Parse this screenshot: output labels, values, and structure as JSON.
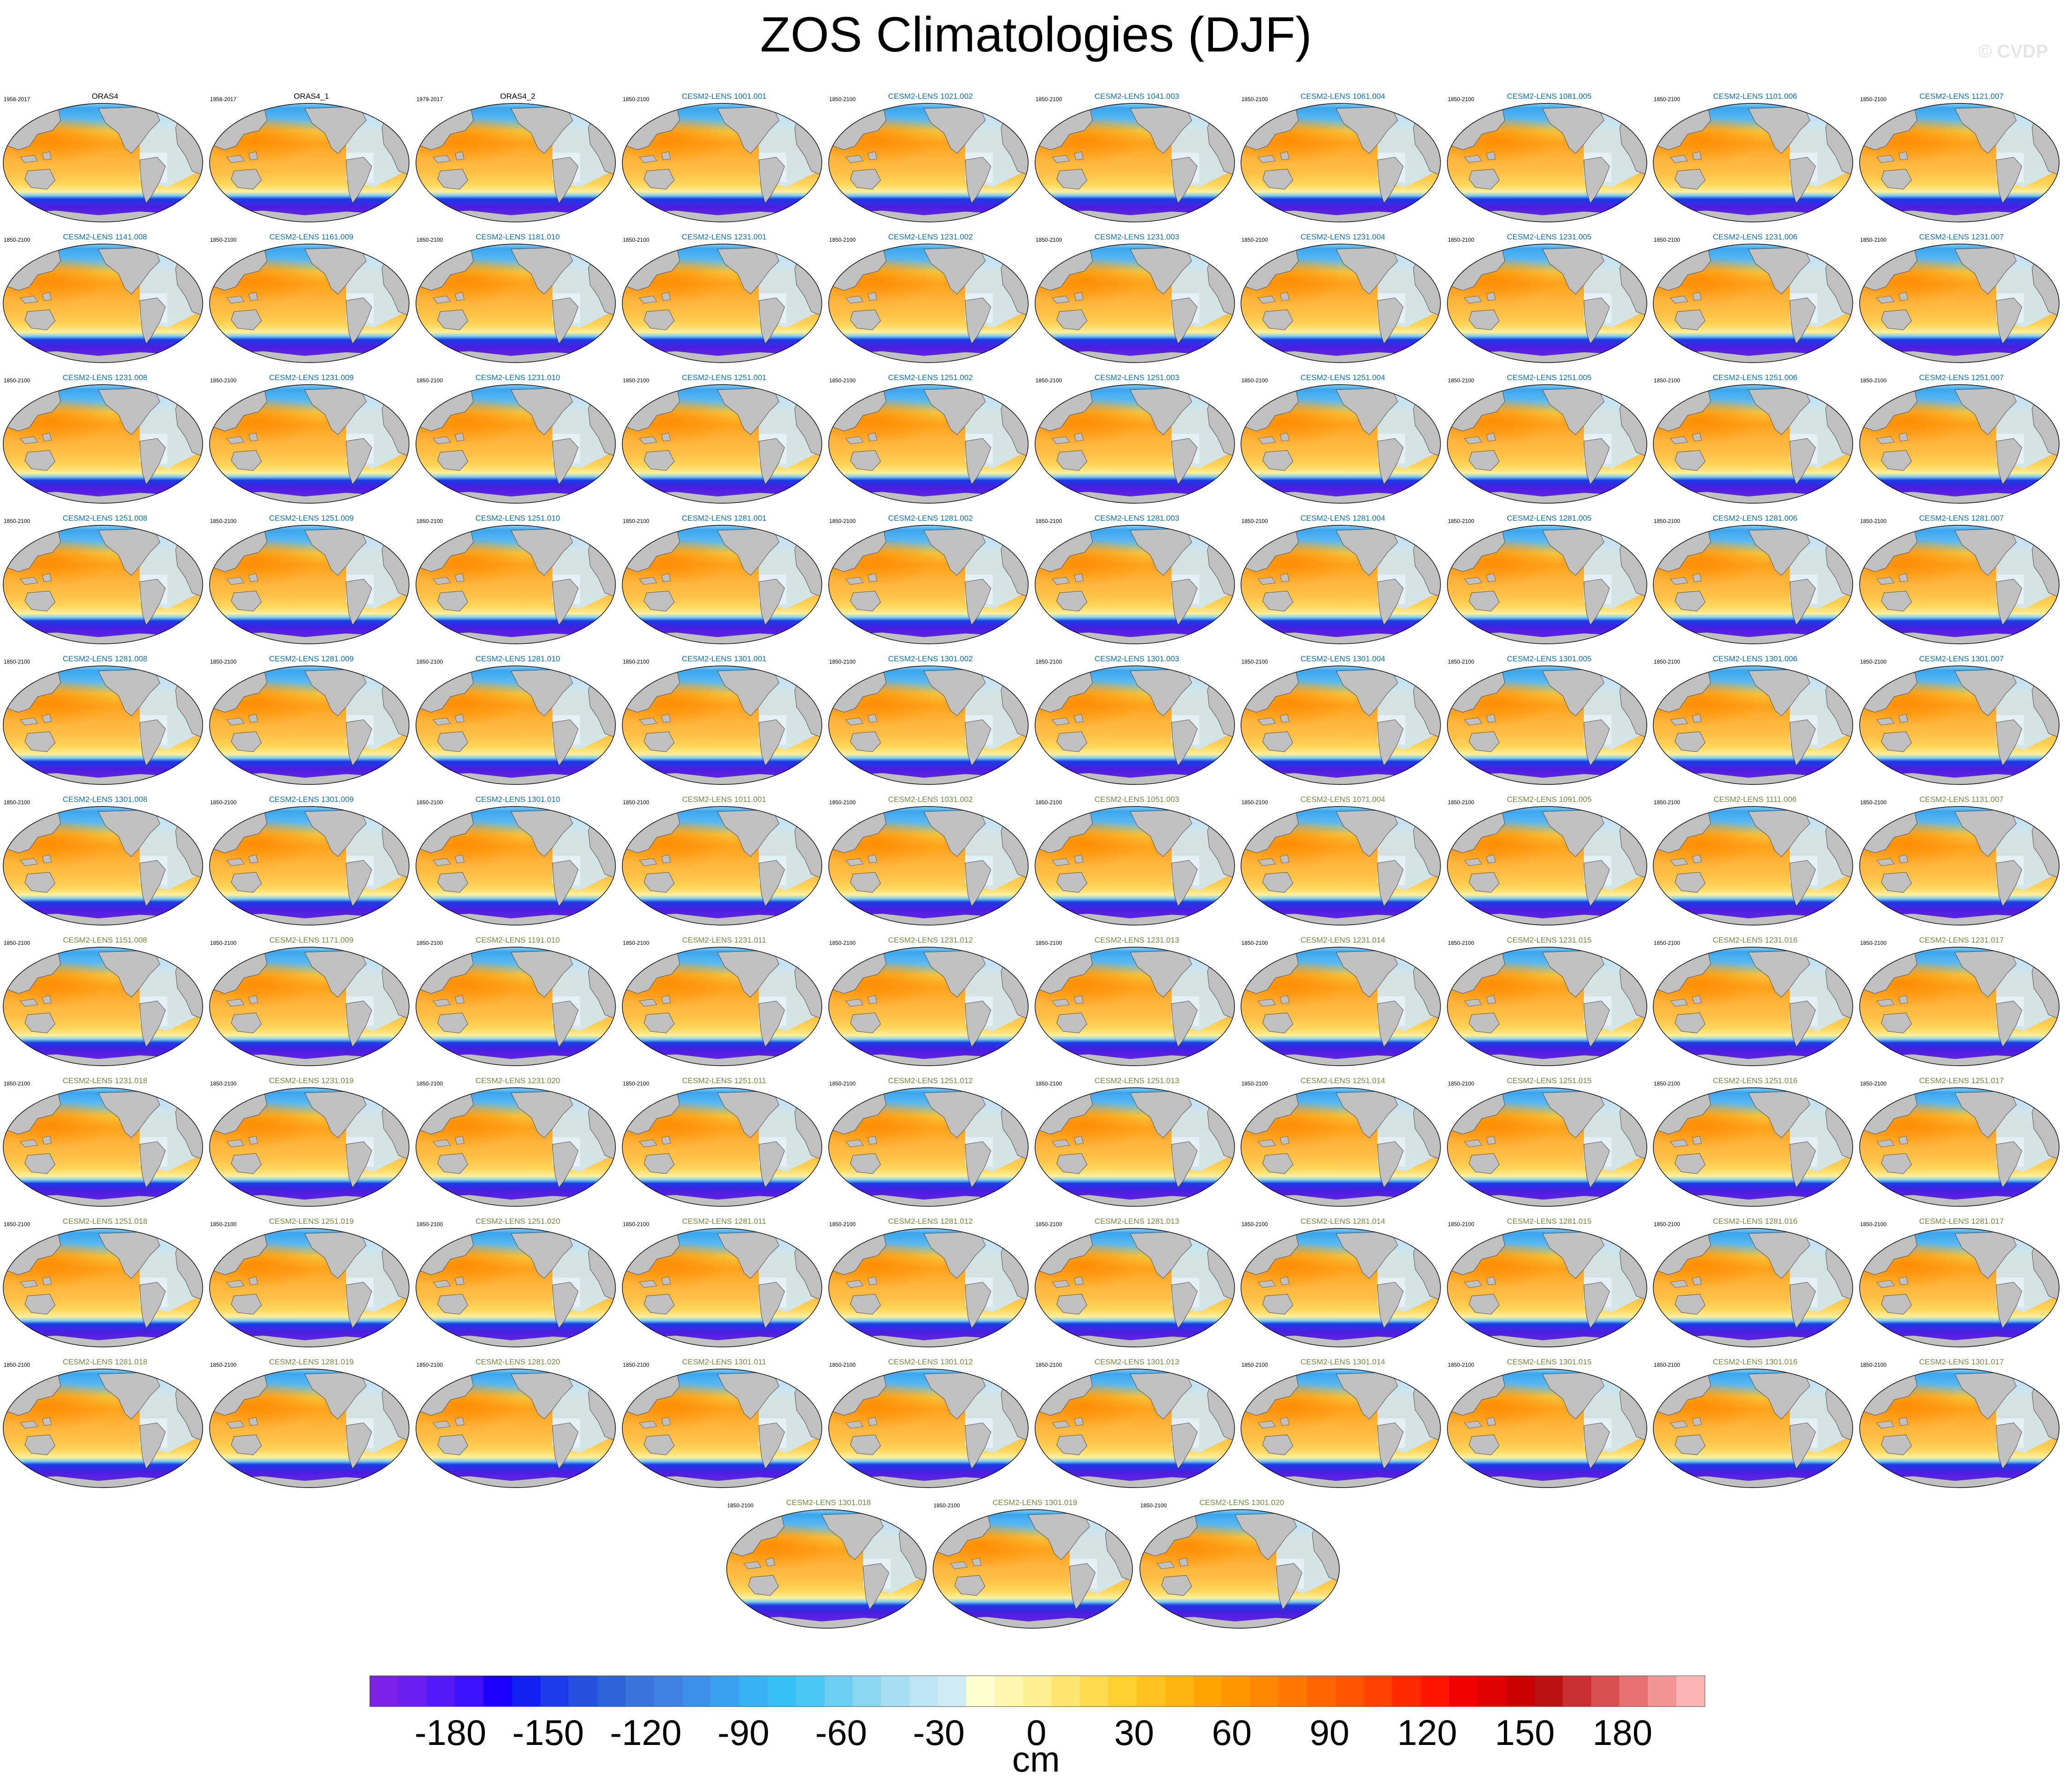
{
  "title": "ZOS Climatologies (DJF)",
  "watermark": "© CVDP",
  "colorbar": {
    "units": "cm",
    "tick_labels": [
      "-180",
      "-150",
      "-120",
      "-90",
      "-60",
      "-30",
      "0",
      "30",
      "60",
      "90",
      "120",
      "150",
      "180"
    ],
    "colors": [
      "#7a1fe6",
      "#6a1ef0",
      "#5519f8",
      "#3b10fc",
      "#1a00ff",
      "#1020f2",
      "#1a3be6",
      "#2550de",
      "#2e62d9",
      "#3a73dc",
      "#3f82e3",
      "#3b90ea",
      "#3aa0f0",
      "#38b0f4",
      "#36c0f6",
      "#4bc7f4",
      "#6ccff2",
      "#8bd7f1",
      "#a7dff2",
      "#bfe6f4",
      "#cfecf5",
      "#ffffd0",
      "#fff7b0",
      "#ffef90",
      "#ffe670",
      "#ffdb50",
      "#ffd030",
      "#ffc320",
      "#ffb410",
      "#ffa400",
      "#ff9600",
      "#ff8600",
      "#ff7600",
      "#ff6600",
      "#ff5400",
      "#ff4000",
      "#ff2a00",
      "#ff1400",
      "#f00000",
      "#dc0000",
      "#c80000",
      "#b81010",
      "#c83030",
      "#d85050",
      "#e67070",
      "#f29494",
      "#fbb4b4"
    ]
  },
  "panels": [
    {
      "title": "ORAS4",
      "period": "1958-2017",
      "obs": true
    },
    {
      "title": "ORAS4_1",
      "period": "1958-2017",
      "obs": true
    },
    {
      "title": "ORAS4_2",
      "period": "1979-2017",
      "obs": true
    },
    {
      "title": "CESM2-LENS 1001.001",
      "period": "1850-2100"
    },
    {
      "title": "CESM2-LENS 1021.002",
      "period": "1850-2100"
    },
    {
      "title": "CESM2-LENS 1041.003",
      "period": "1850-2100"
    },
    {
      "title": "CESM2-LENS 1061.004",
      "period": "1850-2100"
    },
    {
      "title": "CESM2-LENS 1081.005",
      "period": "1850-2100"
    },
    {
      "title": "CESM2-LENS 1101.006",
      "period": "1850-2100"
    },
    {
      "title": "CESM2-LENS 1121.007",
      "period": "1850-2100"
    },
    {
      "title": "CESM2-LENS 1141.008",
      "period": "1850-2100"
    },
    {
      "title": "CESM2-LENS 1161.009",
      "period": "1850-2100"
    },
    {
      "title": "CESM2-LENS 1181.010",
      "period": "1850-2100"
    },
    {
      "title": "CESM2-LENS 1231.001",
      "period": "1850-2100"
    },
    {
      "title": "CESM2-LENS 1231.002",
      "period": "1850-2100"
    },
    {
      "title": "CESM2-LENS 1231.003",
      "period": "1850-2100"
    },
    {
      "title": "CESM2-LENS 1231.004",
      "period": "1850-2100"
    },
    {
      "title": "CESM2-LENS 1231.005",
      "period": "1850-2100"
    },
    {
      "title": "CESM2-LENS 1231.006",
      "period": "1850-2100"
    },
    {
      "title": "CESM2-LENS 1231.007",
      "period": "1850-2100"
    },
    {
      "title": "CESM2-LENS 1231.008",
      "period": "1850-2100"
    },
    {
      "title": "CESM2-LENS 1231.009",
      "period": "1850-2100"
    },
    {
      "title": "CESM2-LENS 1231.010",
      "period": "1850-2100"
    },
    {
      "title": "CESM2-LENS 1251.001",
      "period": "1850-2100"
    },
    {
      "title": "CESM2-LENS 1251.002",
      "period": "1850-2100"
    },
    {
      "title": "CESM2-LENS 1251.003",
      "period": "1850-2100"
    },
    {
      "title": "CESM2-LENS 1251.004",
      "period": "1850-2100"
    },
    {
      "title": "CESM2-LENS 1251.005",
      "period": "1850-2100"
    },
    {
      "title": "CESM2-LENS 1251.006",
      "period": "1850-2100"
    },
    {
      "title": "CESM2-LENS 1251.007",
      "period": "1850-2100"
    },
    {
      "title": "CESM2-LENS 1251.008",
      "period": "1850-2100"
    },
    {
      "title": "CESM2-LENS 1251.009",
      "period": "1850-2100"
    },
    {
      "title": "CESM2-LENS 1251.010",
      "period": "1850-2100"
    },
    {
      "title": "CESM2-LENS 1281.001",
      "period": "1850-2100"
    },
    {
      "title": "CESM2-LENS 1281.002",
      "period": "1850-2100"
    },
    {
      "title": "CESM2-LENS 1281.003",
      "period": "1850-2100"
    },
    {
      "title": "CESM2-LENS 1281.004",
      "period": "1850-2100"
    },
    {
      "title": "CESM2-LENS 1281.005",
      "period": "1850-2100"
    },
    {
      "title": "CESM2-LENS 1281.006",
      "period": "1850-2100"
    },
    {
      "title": "CESM2-LENS 1281.007",
      "period": "1850-2100"
    },
    {
      "title": "CESM2-LENS 1281.008",
      "period": "1850-2100"
    },
    {
      "title": "CESM2-LENS 1281.009",
      "period": "1850-2100"
    },
    {
      "title": "CESM2-LENS 1281.010",
      "period": "1850-2100"
    },
    {
      "title": "CESM2-LENS 1301.001",
      "period": "1850-2100"
    },
    {
      "title": "CESM2-LENS 1301.002",
      "period": "1850-2100"
    },
    {
      "title": "CESM2-LENS 1301.003",
      "period": "1850-2100"
    },
    {
      "title": "CESM2-LENS 1301.004",
      "period": "1850-2100"
    },
    {
      "title": "CESM2-LENS 1301.005",
      "period": "1850-2100"
    },
    {
      "title": "CESM2-LENS 1301.006",
      "period": "1850-2100"
    },
    {
      "title": "CESM2-LENS 1301.007",
      "period": "1850-2100"
    },
    {
      "title": "CESM2-LENS 1301.008",
      "period": "1850-2100"
    },
    {
      "title": "CESM2-LENS 1301.009",
      "period": "1850-2100"
    },
    {
      "title": "CESM2-LENS 1301.010",
      "period": "1850-2100"
    },
    {
      "title": "CESM2-LENS 1011.001",
      "period": "1850-2100",
      "alt": true
    },
    {
      "title": "CESM2-LENS 1031.002",
      "period": "1850-2100",
      "alt": true
    },
    {
      "title": "CESM2-LENS 1051.003",
      "period": "1850-2100",
      "alt": true
    },
    {
      "title": "CESM2-LENS 1071.004",
      "period": "1850-2100",
      "alt": true
    },
    {
      "title": "CESM2-LENS 1091.005",
      "period": "1850-2100",
      "alt": true
    },
    {
      "title": "CESM2-LENS 1111.006",
      "period": "1850-2100",
      "alt": true
    },
    {
      "title": "CESM2-LENS 1131.007",
      "period": "1850-2100",
      "alt": true
    },
    {
      "title": "CESM2-LENS 1151.008",
      "period": "1850-2100",
      "alt": true
    },
    {
      "title": "CESM2-LENS 1171.009",
      "period": "1850-2100",
      "alt": true
    },
    {
      "title": "CESM2-LENS 1191.010",
      "period": "1850-2100",
      "alt": true
    },
    {
      "title": "CESM2-LENS 1231.011",
      "period": "1850-2100",
      "alt": true
    },
    {
      "title": "CESM2-LENS 1231.012",
      "period": "1850-2100",
      "alt": true
    },
    {
      "title": "CESM2-LENS 1231.013",
      "period": "1850-2100",
      "alt": true
    },
    {
      "title": "CESM2-LENS 1231.014",
      "period": "1850-2100",
      "alt": true
    },
    {
      "title": "CESM2-LENS 1231.015",
      "period": "1850-2100",
      "alt": true
    },
    {
      "title": "CESM2-LENS 1231.016",
      "period": "1850-2100",
      "alt": true
    },
    {
      "title": "CESM2-LENS 1231.017",
      "period": "1850-2100",
      "alt": true
    },
    {
      "title": "CESM2-LENS 1231.018",
      "period": "1850-2100",
      "alt": true
    },
    {
      "title": "CESM2-LENS 1231.019",
      "period": "1850-2100",
      "alt": true
    },
    {
      "title": "CESM2-LENS 1231.020",
      "period": "1850-2100",
      "alt": true
    },
    {
      "title": "CESM2-LENS 1251.011",
      "period": "1850-2100",
      "alt": true
    },
    {
      "title": "CESM2-LENS 1251.012",
      "period": "1850-2100",
      "alt": true
    },
    {
      "title": "CESM2-LENS 1251.013",
      "period": "1850-2100",
      "alt": true
    },
    {
      "title": "CESM2-LENS 1251.014",
      "period": "1850-2100",
      "alt": true
    },
    {
      "title": "CESM2-LENS 1251.015",
      "period": "1850-2100",
      "alt": true
    },
    {
      "title": "CESM2-LENS 1251.016",
      "period": "1850-2100",
      "alt": true
    },
    {
      "title": "CESM2-LENS 1251.017",
      "period": "1850-2100",
      "alt": true
    },
    {
      "title": "CESM2-LENS 1251.018",
      "period": "1850-2100",
      "alt": true
    },
    {
      "title": "CESM2-LENS 1251.019",
      "period": "1850-2100",
      "alt": true
    },
    {
      "title": "CESM2-LENS 1251.020",
      "period": "1850-2100",
      "alt": true
    },
    {
      "title": "CESM2-LENS 1281.011",
      "period": "1850-2100",
      "alt": true
    },
    {
      "title": "CESM2-LENS 1281.012",
      "period": "1850-2100",
      "alt": true
    },
    {
      "title": "CESM2-LENS 1281.013",
      "period": "1850-2100",
      "alt": true
    },
    {
      "title": "CESM2-LENS 1281.014",
      "period": "1850-2100",
      "alt": true
    },
    {
      "title": "CESM2-LENS 1281.015",
      "period": "1850-2100",
      "alt": true
    },
    {
      "title": "CESM2-LENS 1281.016",
      "period": "1850-2100",
      "alt": true
    },
    {
      "title": "CESM2-LENS 1281.017",
      "period": "1850-2100",
      "alt": true
    },
    {
      "title": "CESM2-LENS 1281.018",
      "period": "1850-2100",
      "alt": true
    },
    {
      "title": "CESM2-LENS 1281.019",
      "period": "1850-2100",
      "alt": true
    },
    {
      "title": "CESM2-LENS 1281.020",
      "period": "1850-2100",
      "alt": true
    },
    {
      "title": "CESM2-LENS 1301.011",
      "period": "1850-2100",
      "alt": true
    },
    {
      "title": "CESM2-LENS 1301.012",
      "period": "1850-2100",
      "alt": true
    },
    {
      "title": "CESM2-LENS 1301.013",
      "period": "1850-2100",
      "alt": true
    },
    {
      "title": "CESM2-LENS 1301.014",
      "period": "1850-2100",
      "alt": true
    },
    {
      "title": "CESM2-LENS 1301.015",
      "period": "1850-2100",
      "alt": true
    },
    {
      "title": "CESM2-LENS 1301.016",
      "period": "1850-2100",
      "alt": true
    },
    {
      "title": "CESM2-LENS 1301.017",
      "period": "1850-2100",
      "alt": true
    },
    {
      "title": "CESM2-LENS 1301.018",
      "period": "1850-2100",
      "alt": true
    },
    {
      "title": "CESM2-LENS 1301.019",
      "period": "1850-2100",
      "alt": true
    },
    {
      "title": "CESM2-LENS 1301.020",
      "period": "1850-2100",
      "alt": true
    }
  ],
  "title_colors": {
    "obs": "#000000",
    "model": "#0a6fb8",
    "alt": "#6e8c3c"
  },
  "map_colors": {
    "land": "#c0c0c0",
    "southern_band": "#4a1de0",
    "southern_edge": "#1a3be6",
    "coastline": "#303030"
  }
}
